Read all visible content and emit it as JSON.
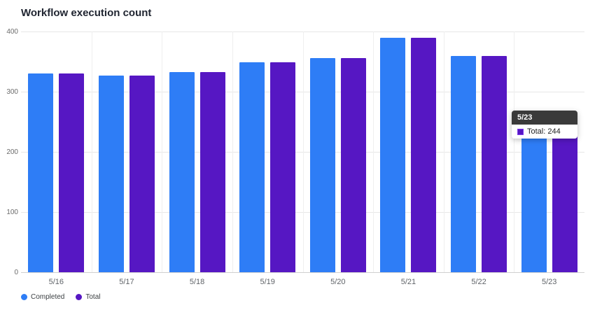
{
  "title": "Workflow execution count",
  "chart_data": {
    "type": "bar",
    "categories": [
      "5/16",
      "5/17",
      "5/18",
      "5/19",
      "5/20",
      "5/21",
      "5/22",
      "5/23"
    ],
    "series": [
      {
        "name": "Completed",
        "color": "#2e7df6",
        "values": [
          330,
          327,
          333,
          349,
          356,
          390,
          359,
          244
        ]
      },
      {
        "name": "Total",
        "color": "#5617c3",
        "values": [
          330,
          327,
          333,
          349,
          356,
          390,
          359,
          244
        ]
      }
    ],
    "title": "Workflow execution count",
    "xlabel": "",
    "ylabel": "",
    "ylim": [
      0,
      400
    ],
    "yticks": [
      0,
      100,
      200,
      300,
      400
    ],
    "grid": true,
    "legend_position": "bottom-left"
  },
  "tooltip": {
    "category": "5/23",
    "series": "Total",
    "value": 244,
    "label": "Total: 244",
    "swatch_color": "#5617c3"
  }
}
